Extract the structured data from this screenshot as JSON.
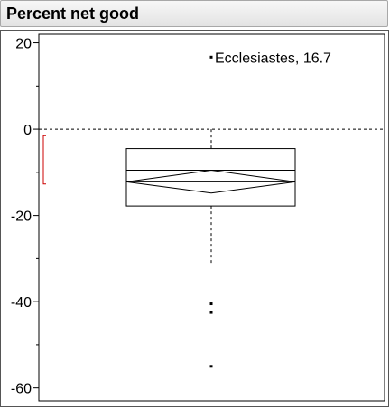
{
  "header": {
    "title": "Percent net good"
  },
  "chart_data": {
    "type": "boxplot",
    "title": "Percent net good",
    "ylim": [
      -63,
      22
    ],
    "yticks": [
      20,
      0,
      -20,
      -40,
      -60
    ],
    "ytick_labels": [
      "20",
      "0",
      "-20",
      "-40",
      "-60"
    ],
    "minor_yticks": [
      10,
      -10,
      -30,
      -50
    ],
    "reference_line": 0,
    "box": {
      "q1": -17.8,
      "median": -9.5,
      "q3": -4.5,
      "whisker_low": -31,
      "whisker_high": 0,
      "mean": -12.2,
      "mean_ci_low": -14.8,
      "mean_ci_high": -9.5
    },
    "shortest_half_bracket": [
      -1.5,
      -12.7
    ],
    "outliers": [
      {
        "value": 16.7,
        "label": "Ecclesiastes, 16.7"
      },
      {
        "value": -40.5,
        "label": ""
      },
      {
        "value": -42.5,
        "label": ""
      },
      {
        "value": -55.0,
        "label": ""
      }
    ],
    "colors": {
      "bracket": "#cc0000",
      "line": "#000000"
    }
  }
}
